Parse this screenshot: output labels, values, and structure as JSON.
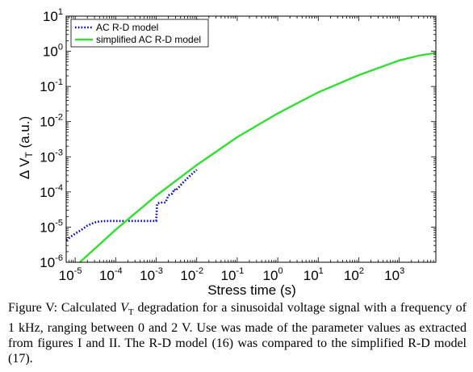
{
  "caption": {
    "label": "Figure V:",
    "pre": " Calculated ",
    "symbol": "V",
    "symbol_sub": "T",
    "post": " degradation for a sinusoidal voltage signal with a frequency of 1 kHz, ranging between 0 and 2 V. Use was made of the parameter values as extracted from figures I and II. The R-D model (16) was compared to the simplified R-D model (17)."
  },
  "chart_data": {
    "type": "line",
    "xlabel": "Stress time (s)",
    "ylabel": "Δ V",
    "ylabel_sub": "T",
    "ylabel_suffix": " (a.u.)",
    "x_scale": "log",
    "y_scale": "log",
    "xlim": [
      6e-06,
      8000
    ],
    "ylim": [
      1e-06,
      10
    ],
    "grid": false,
    "legend_position": "top-left",
    "x_ticks": [
      {
        "base": "10",
        "exp": "-5",
        "value": 1e-05
      },
      {
        "base": "10",
        "exp": "-4",
        "value": 0.0001
      },
      {
        "base": "10",
        "exp": "-3",
        "value": 0.001
      },
      {
        "base": "10",
        "exp": "-2",
        "value": 0.01
      },
      {
        "base": "10",
        "exp": "-1",
        "value": 0.1
      },
      {
        "base": "10",
        "exp": "0",
        "value": 1
      },
      {
        "base": "10",
        "exp": "1",
        "value": 10
      },
      {
        "base": "10",
        "exp": "2",
        "value": 100
      },
      {
        "base": "10",
        "exp": "3",
        "value": 1000
      }
    ],
    "y_ticks": [
      {
        "base": "10",
        "exp": "-6",
        "value": 1e-06
      },
      {
        "base": "10",
        "exp": "-5",
        "value": 1e-05
      },
      {
        "base": "10",
        "exp": "-4",
        "value": 0.0001
      },
      {
        "base": "10",
        "exp": "-3",
        "value": 0.001
      },
      {
        "base": "10",
        "exp": "-2",
        "value": 0.01
      },
      {
        "base": "10",
        "exp": "-1",
        "value": 0.1
      },
      {
        "base": "10",
        "exp": "0",
        "value": 1
      },
      {
        "base": "10",
        "exp": "1",
        "value": 10
      }
    ],
    "series": [
      {
        "name": "AC R-D model",
        "color": "#0000cc",
        "style": "dotted",
        "x": [
          6e-06,
          1e-05,
          1.5e-05,
          2e-05,
          3e-05,
          4e-05,
          5e-05,
          7e-05,
          0.0001,
          0.0003,
          0.00095,
          0.001,
          0.00105,
          0.0011,
          0.0014,
          0.0016,
          0.0017,
          0.002,
          0.0025,
          0.0028,
          0.003,
          0.0035,
          0.0045,
          0.006,
          0.008,
          0.01
        ],
        "y": [
          4.3e-06,
          6.5e-06,
          8.7e-06,
          1.1e-05,
          1.35e-05,
          1.45e-05,
          1.48e-05,
          1.5e-05,
          1.5e-05,
          1.5e-05,
          1.5e-05,
          1.5e-05,
          4.5e-05,
          4.8e-05,
          5e-05,
          5e-05,
          5e-05,
          8e-05,
          9e-05,
          0.00012,
          0.00011,
          0.00013,
          0.00018,
          0.00025,
          0.00034,
          0.00043
        ]
      },
      {
        "name": "simplified AC R-D model",
        "color": "#33dd33",
        "style": "solid",
        "x": [
          1.3e-05,
          0.0001,
          0.001,
          0.01,
          0.1,
          1,
          10,
          100,
          1000,
          3000,
          8000
        ],
        "y": [
          1e-06,
          8.4e-06,
          7.84e-05,
          0.00058,
          0.0036,
          0.0172,
          0.068,
          0.21,
          0.55,
          0.75,
          0.9
        ]
      }
    ]
  }
}
